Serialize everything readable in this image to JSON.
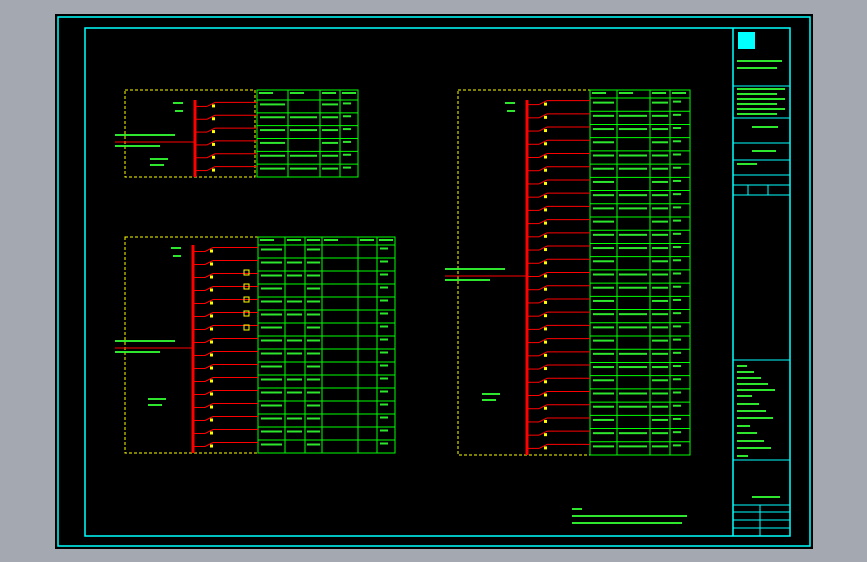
{
  "colors": {
    "background": "#000000",
    "window": "#a4a8b0",
    "frame": "#00ffff",
    "bus": "#ff0000",
    "table": "#00ff00",
    "enclosure": "#ffff00",
    "switch": "#ffffff",
    "text_green": "#33ff33"
  },
  "panels": [
    {
      "name": "panel-top-left",
      "feeders": 6
    },
    {
      "name": "panel-bottom-left",
      "feeders": 16
    },
    {
      "name": "panel-right",
      "feeders": 27
    }
  ]
}
